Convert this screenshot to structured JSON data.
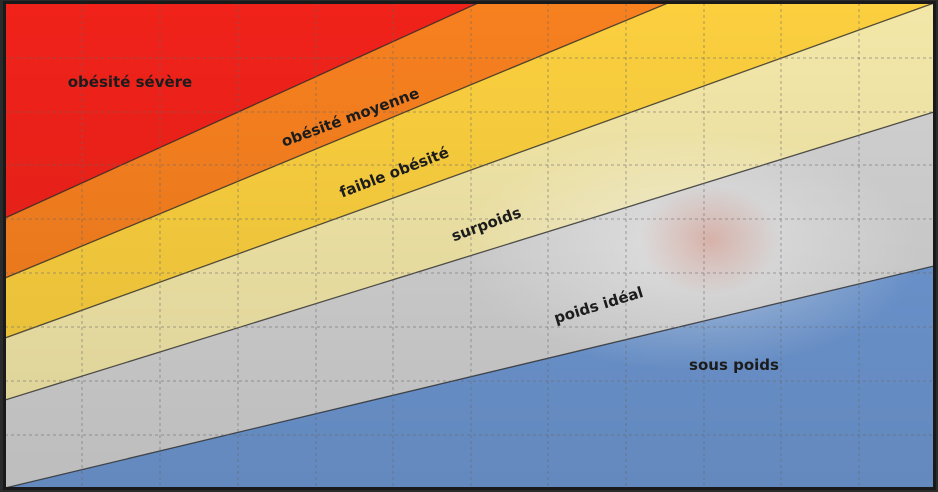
{
  "chart_data": {
    "type": "area",
    "title": "",
    "xlabel": "",
    "ylabel": "",
    "grid": true,
    "legend": "none",
    "zones": [
      {
        "name": "obésité sévère",
        "color": "#f0221a"
      },
      {
        "name": "obésité moyenne",
        "color": "#f7801f"
      },
      {
        "name": "faible obésité",
        "color": "#fbcf3e"
      },
      {
        "name": "surpoids",
        "color": "#f3e7a8"
      },
      {
        "name": "poids idéal",
        "color": "#d2d2d2"
      },
      {
        "name": "sous poids",
        "color": "#6e98d3"
      }
    ]
  }
}
